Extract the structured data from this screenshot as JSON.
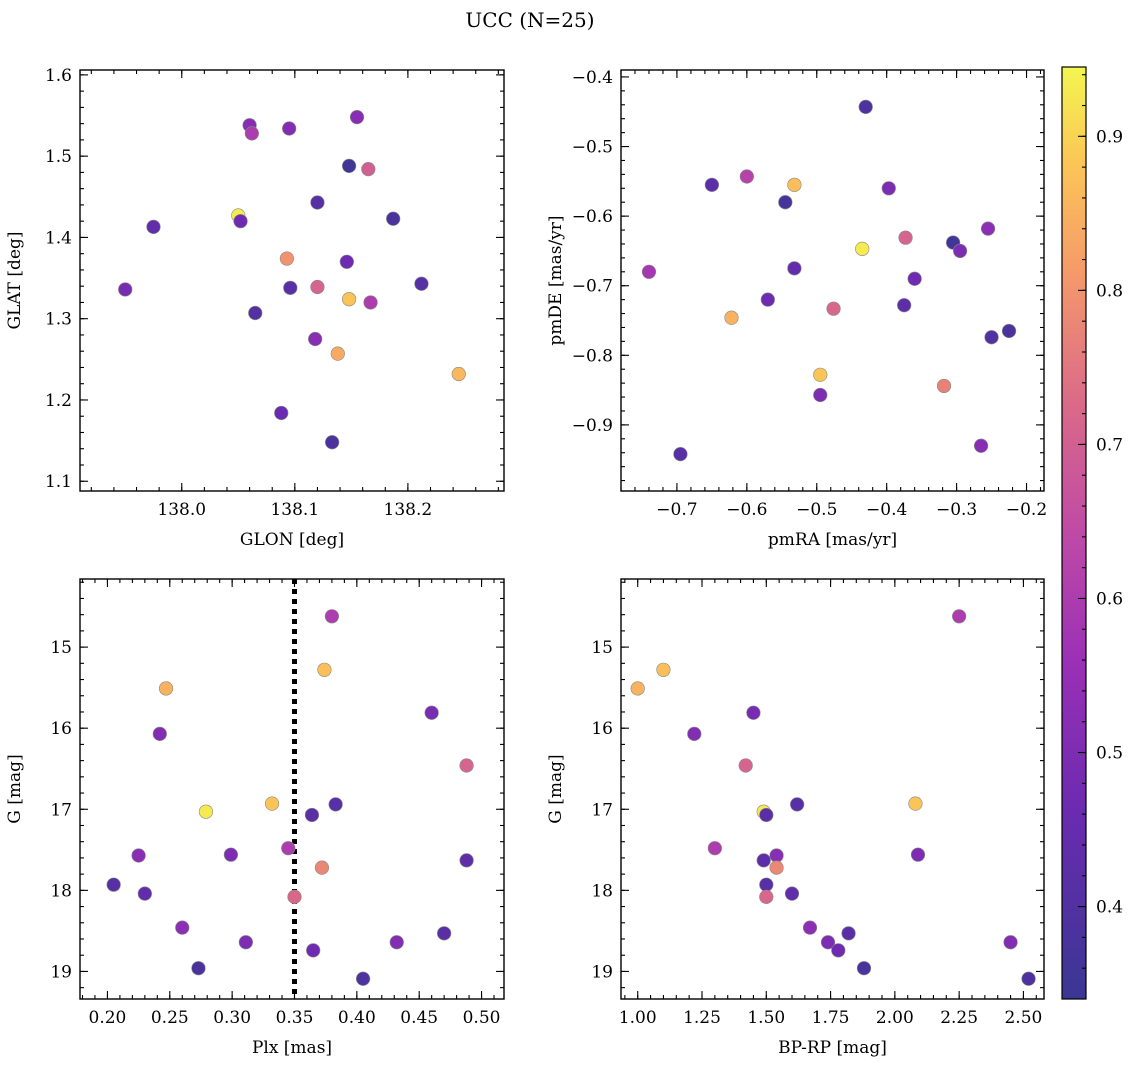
{
  "figure": {
    "title": "UCC (N=25)"
  },
  "colorbar": {
    "range": [
      0.34,
      0.945
    ],
    "ticks": [
      0.4,
      0.5,
      0.6,
      0.7,
      0.8,
      0.9
    ],
    "tick_labels": [
      "0.4",
      "0.5",
      "0.6",
      "0.7",
      "0.8",
      "0.9"
    ],
    "colormap": "plasma"
  },
  "chart_data": [
    {
      "type": "scatter",
      "xlabel": "GLON [deg]",
      "ylabel": "GLAT [deg]",
      "xlim": [
        137.91,
        138.285
      ],
      "ylim": [
        1.088,
        1.606
      ],
      "xticks": [
        138.0,
        138.1,
        138.2
      ],
      "xtick_labels": [
        "138.0",
        "138.1",
        "138.2"
      ],
      "yticks": [
        1.1,
        1.2,
        1.3,
        1.4,
        1.5,
        1.6
      ],
      "ytick_labels": [
        "1.1",
        "1.2",
        "1.3",
        "1.4",
        "1.5",
        "1.6"
      ],
      "invert_y": false,
      "points": [
        {
          "x": 137.95,
          "y": 1.336,
          "c": 0.49
        },
        {
          "x": 137.975,
          "y": 1.413,
          "c": 0.44
        },
        {
          "x": 138.05,
          "y": 1.427,
          "c": 0.93
        },
        {
          "x": 138.052,
          "y": 1.42,
          "c": 0.47
        },
        {
          "x": 138.06,
          "y": 1.538,
          "c": 0.52
        },
        {
          "x": 138.062,
          "y": 1.528,
          "c": 0.6
        },
        {
          "x": 138.065,
          "y": 1.307,
          "c": 0.4
        },
        {
          "x": 138.088,
          "y": 1.184,
          "c": 0.46
        },
        {
          "x": 138.093,
          "y": 1.374,
          "c": 0.8
        },
        {
          "x": 138.095,
          "y": 1.534,
          "c": 0.51
        },
        {
          "x": 138.096,
          "y": 1.338,
          "c": 0.42
        },
        {
          "x": 138.118,
          "y": 1.275,
          "c": 0.52
        },
        {
          "x": 138.12,
          "y": 1.443,
          "c": 0.41
        },
        {
          "x": 138.12,
          "y": 1.339,
          "c": 0.71
        },
        {
          "x": 138.133,
          "y": 1.148,
          "c": 0.38
        },
        {
          "x": 138.138,
          "y": 1.257,
          "c": 0.84
        },
        {
          "x": 138.146,
          "y": 1.37,
          "c": 0.47
        },
        {
          "x": 138.148,
          "y": 1.488,
          "c": 0.36
        },
        {
          "x": 138.148,
          "y": 1.324,
          "c": 0.88
        },
        {
          "x": 138.155,
          "y": 1.548,
          "c": 0.52
        },
        {
          "x": 138.165,
          "y": 1.484,
          "c": 0.7
        },
        {
          "x": 138.167,
          "y": 1.32,
          "c": 0.6
        },
        {
          "x": 138.187,
          "y": 1.423,
          "c": 0.38
        },
        {
          "x": 138.212,
          "y": 1.343,
          "c": 0.41
        },
        {
          "x": 138.245,
          "y": 1.232,
          "c": 0.86
        }
      ]
    },
    {
      "type": "scatter",
      "xlabel": "pmRA [mas/yr]",
      "ylabel": "pmDE [mas/yr]",
      "xlim": [
        -0.78,
        -0.175
      ],
      "ylim": [
        -0.995,
        -0.39
      ],
      "xticks": [
        -0.7,
        -0.6,
        -0.5,
        -0.4,
        -0.3,
        -0.2
      ],
      "xtick_labels": [
        "−0.7",
        "−0.6",
        "−0.5",
        "−0.4",
        "−0.3",
        "−0.2"
      ],
      "yticks": [
        -0.9,
        -0.8,
        -0.7,
        -0.6,
        -0.5,
        -0.4
      ],
      "ytick_labels": [
        "−0.9",
        "−0.8",
        "−0.7",
        "−0.6",
        "−0.5",
        "−0.4"
      ],
      "invert_y": false,
      "points": [
        {
          "x": -0.74,
          "y": -0.68,
          "c": 0.58
        },
        {
          "x": -0.695,
          "y": -0.942,
          "c": 0.41
        },
        {
          "x": -0.65,
          "y": -0.555,
          "c": 0.43
        },
        {
          "x": -0.622,
          "y": -0.746,
          "c": 0.85
        },
        {
          "x": -0.6,
          "y": -0.543,
          "c": 0.62
        },
        {
          "x": -0.57,
          "y": -0.72,
          "c": 0.47
        },
        {
          "x": -0.545,
          "y": -0.58,
          "c": 0.37
        },
        {
          "x": -0.532,
          "y": -0.675,
          "c": 0.44
        },
        {
          "x": -0.532,
          "y": -0.555,
          "c": 0.87
        },
        {
          "x": -0.495,
          "y": -0.828,
          "c": 0.88
        },
        {
          "x": -0.495,
          "y": -0.857,
          "c": 0.5
        },
        {
          "x": -0.476,
          "y": -0.733,
          "c": 0.72
        },
        {
          "x": -0.435,
          "y": -0.647,
          "c": 0.93
        },
        {
          "x": -0.43,
          "y": -0.443,
          "c": 0.39
        },
        {
          "x": -0.397,
          "y": -0.56,
          "c": 0.5
        },
        {
          "x": -0.375,
          "y": -0.728,
          "c": 0.43
        },
        {
          "x": -0.373,
          "y": -0.631,
          "c": 0.71
        },
        {
          "x": -0.36,
          "y": -0.69,
          "c": 0.47
        },
        {
          "x": -0.318,
          "y": -0.844,
          "c": 0.77
        },
        {
          "x": -0.305,
          "y": -0.638,
          "c": 0.36
        },
        {
          "x": -0.295,
          "y": -0.65,
          "c": 0.5
        },
        {
          "x": -0.265,
          "y": -0.93,
          "c": 0.52
        },
        {
          "x": -0.255,
          "y": -0.618,
          "c": 0.53
        },
        {
          "x": -0.25,
          "y": -0.774,
          "c": 0.4
        },
        {
          "x": -0.225,
          "y": -0.765,
          "c": 0.38
        }
      ]
    },
    {
      "type": "scatter",
      "xlabel": "Plx [mas]",
      "ylabel": "G [mag]",
      "xlim": [
        0.178,
        0.518
      ],
      "ylim": [
        14.16,
        19.34
      ],
      "xticks": [
        0.2,
        0.25,
        0.3,
        0.35,
        0.4,
        0.45,
        0.5
      ],
      "xtick_labels": [
        "0.20",
        "0.25",
        "0.30",
        "0.35",
        "0.40",
        "0.45",
        "0.50"
      ],
      "yticks": [
        15,
        16,
        17,
        18,
        19
      ],
      "ytick_labels": [
        "15",
        "16",
        "17",
        "18",
        "19"
      ],
      "invert_y": true,
      "vline": 0.35,
      "points": [
        {
          "x": 0.38,
          "y": 14.62,
          "c": 0.6
        },
        {
          "x": 0.374,
          "y": 15.28,
          "c": 0.87
        },
        {
          "x": 0.247,
          "y": 15.51,
          "c": 0.85
        },
        {
          "x": 0.46,
          "y": 15.81,
          "c": 0.49
        },
        {
          "x": 0.242,
          "y": 16.07,
          "c": 0.51
        },
        {
          "x": 0.488,
          "y": 16.46,
          "c": 0.71
        },
        {
          "x": 0.332,
          "y": 16.93,
          "c": 0.88
        },
        {
          "x": 0.383,
          "y": 16.94,
          "c": 0.41
        },
        {
          "x": 0.279,
          "y": 17.03,
          "c": 0.93
        },
        {
          "x": 0.364,
          "y": 17.07,
          "c": 0.42
        },
        {
          "x": 0.345,
          "y": 17.48,
          "c": 0.6
        },
        {
          "x": 0.225,
          "y": 17.57,
          "c": 0.52
        },
        {
          "x": 0.299,
          "y": 17.56,
          "c": 0.5
        },
        {
          "x": 0.488,
          "y": 17.63,
          "c": 0.43
        },
        {
          "x": 0.372,
          "y": 17.72,
          "c": 0.78
        },
        {
          "x": 0.205,
          "y": 17.93,
          "c": 0.41
        },
        {
          "x": 0.23,
          "y": 18.04,
          "c": 0.44
        },
        {
          "x": 0.35,
          "y": 18.08,
          "c": 0.72
        },
        {
          "x": 0.26,
          "y": 18.46,
          "c": 0.53
        },
        {
          "x": 0.47,
          "y": 18.53,
          "c": 0.42
        },
        {
          "x": 0.311,
          "y": 18.64,
          "c": 0.5
        },
        {
          "x": 0.432,
          "y": 18.64,
          "c": 0.51
        },
        {
          "x": 0.365,
          "y": 18.74,
          "c": 0.47
        },
        {
          "x": 0.273,
          "y": 18.96,
          "c": 0.38
        },
        {
          "x": 0.405,
          "y": 19.09,
          "c": 0.39
        }
      ]
    },
    {
      "type": "scatter",
      "xlabel": "BP-RP [mag]",
      "ylabel": "G [mag]",
      "xlim": [
        0.935,
        2.58
      ],
      "ylim": [
        14.16,
        19.34
      ],
      "xticks": [
        1.0,
        1.25,
        1.5,
        1.75,
        2.0,
        2.25,
        2.5
      ],
      "xtick_labels": [
        "1.00",
        "1.25",
        "1.50",
        "1.75",
        "2.00",
        "2.25",
        "2.50"
      ],
      "yticks": [
        15,
        16,
        17,
        18,
        19
      ],
      "ytick_labels": [
        "15",
        "16",
        "17",
        "18",
        "19"
      ],
      "invert_y": true,
      "points": [
        {
          "x": 2.25,
          "y": 14.62,
          "c": 0.6
        },
        {
          "x": 1.1,
          "y": 15.28,
          "c": 0.87
        },
        {
          "x": 1.0,
          "y": 15.51,
          "c": 0.85
        },
        {
          "x": 1.45,
          "y": 15.81,
          "c": 0.49
        },
        {
          "x": 1.22,
          "y": 16.07,
          "c": 0.51
        },
        {
          "x": 1.42,
          "y": 16.46,
          "c": 0.71
        },
        {
          "x": 2.08,
          "y": 16.93,
          "c": 0.88
        },
        {
          "x": 1.62,
          "y": 16.94,
          "c": 0.41
        },
        {
          "x": 1.49,
          "y": 17.03,
          "c": 0.93
        },
        {
          "x": 1.5,
          "y": 17.07,
          "c": 0.42
        },
        {
          "x": 1.3,
          "y": 17.48,
          "c": 0.6
        },
        {
          "x": 1.54,
          "y": 17.57,
          "c": 0.52
        },
        {
          "x": 2.09,
          "y": 17.56,
          "c": 0.5
        },
        {
          "x": 1.49,
          "y": 17.63,
          "c": 0.43
        },
        {
          "x": 1.54,
          "y": 17.72,
          "c": 0.78
        },
        {
          "x": 1.5,
          "y": 17.93,
          "c": 0.41
        },
        {
          "x": 1.6,
          "y": 18.04,
          "c": 0.44
        },
        {
          "x": 1.5,
          "y": 18.08,
          "c": 0.72
        },
        {
          "x": 1.67,
          "y": 18.46,
          "c": 0.53
        },
        {
          "x": 1.82,
          "y": 18.53,
          "c": 0.42
        },
        {
          "x": 1.74,
          "y": 18.64,
          "c": 0.5
        },
        {
          "x": 2.45,
          "y": 18.64,
          "c": 0.51
        },
        {
          "x": 1.78,
          "y": 18.74,
          "c": 0.47
        },
        {
          "x": 1.88,
          "y": 18.96,
          "c": 0.38
        },
        {
          "x": 2.52,
          "y": 19.09,
          "c": 0.39
        }
      ]
    }
  ]
}
